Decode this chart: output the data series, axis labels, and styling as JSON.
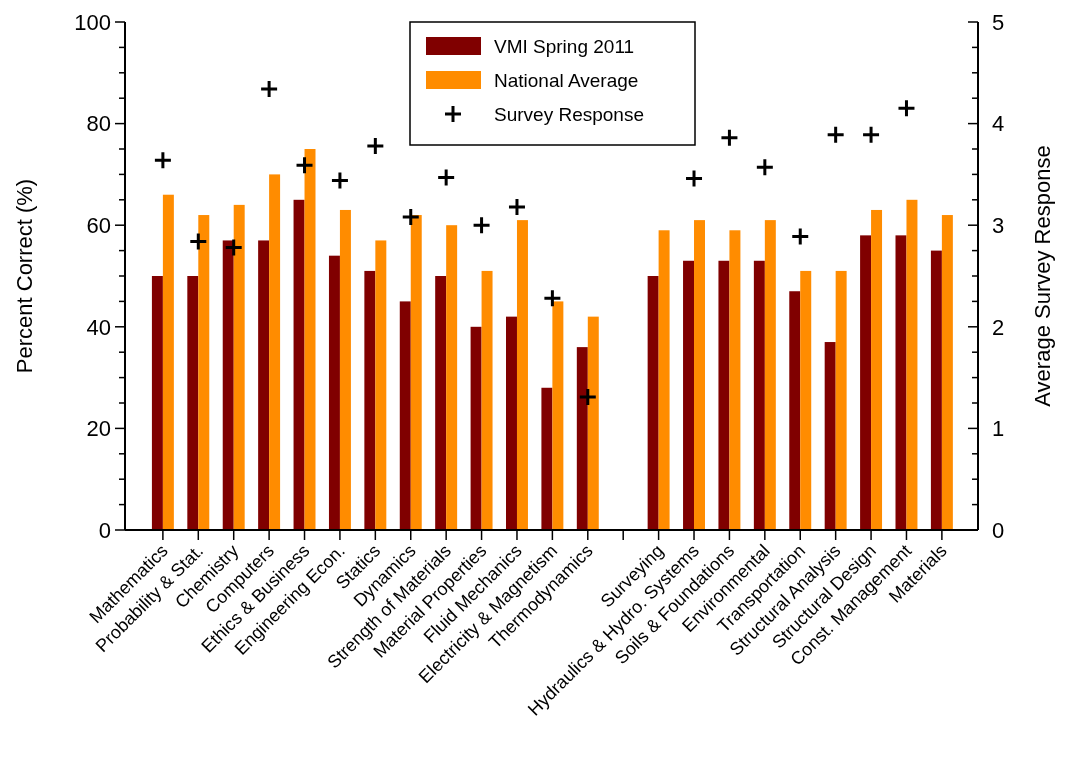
{
  "chart_data": {
    "type": "bar",
    "ylabel": "Percent Correct (%)",
    "y2label": "Average Survey Response",
    "categories": [
      "Mathematics",
      "Probability & Stat.",
      "Chemistry",
      "Computers",
      "Ethics & Business",
      "Engineering Econ.",
      "Statics",
      "Dynamics",
      "Strength of Materials",
      "Material Properties",
      "Fluid Mechanics",
      "Electricity & Magnetism",
      "Thermodynamics",
      null,
      "Surveying",
      "Hydraulics & Hydro. Systems",
      "Soils & Foundations",
      "Environmental",
      "Transportation",
      "Structural Analysis",
      "Structural Design",
      "Const. Management",
      "Materials"
    ],
    "series": [
      {
        "name": "VMI Spring 2011",
        "color": "#800000",
        "values": [
          50,
          50,
          57,
          57,
          65,
          54,
          51,
          45,
          50,
          40,
          42,
          28,
          36,
          null,
          50,
          53,
          53,
          53,
          47,
          37,
          58,
          58,
          55
        ]
      },
      {
        "name": "National Average",
        "color": "#ff8c00",
        "values": [
          66,
          62,
          64,
          70,
          75,
          63,
          57,
          62,
          60,
          51,
          61,
          45,
          42,
          null,
          59,
          61,
          59,
          61,
          51,
          51,
          63,
          65,
          62
        ]
      },
      {
        "name": "Survey Response",
        "type": "scatter",
        "axis": "y2",
        "marker": "cross",
        "color": "#000000",
        "values": [
          3.64,
          2.84,
          2.78,
          4.34,
          3.59,
          3.44,
          3.78,
          3.08,
          3.47,
          3.0,
          3.18,
          2.28,
          1.31,
          null,
          null,
          3.46,
          3.86,
          3.57,
          2.89,
          3.89,
          3.89,
          4.15,
          null
        ]
      }
    ],
    "ylim": [
      0,
      100
    ],
    "yticks": [
      0,
      {
        "value": 5,
        "label": null
      },
      {
        "value": 10,
        "label": null
      },
      {
        "value": 15,
        "label": null
      },
      20,
      {
        "value": 25,
        "label": null
      },
      {
        "value": 30,
        "label": null
      },
      {
        "value": 35,
        "label": null
      },
      40,
      {
        "value": 45,
        "label": null
      },
      {
        "value": 50,
        "label": null
      },
      {
        "value": 55,
        "label": null
      },
      60,
      {
        "value": 65,
        "label": null
      },
      {
        "value": 70,
        "label": null
      },
      {
        "value": 75,
        "label": null
      },
      80,
      {
        "value": 85,
        "label": null
      },
      {
        "value": 90,
        "label": null
      },
      {
        "value": 95,
        "label": null
      },
      100
    ],
    "y2lim": [
      0,
      5
    ],
    "y2ticks": [
      0,
      {
        "value": 0.25,
        "label": null
      },
      {
        "value": 0.5,
        "label": null
      },
      {
        "value": 0.75,
        "label": null
      },
      1,
      {
        "value": 1.25,
        "label": null
      },
      {
        "value": 1.5,
        "label": null
      },
      {
        "value": 1.75,
        "label": null
      },
      2,
      {
        "value": 2.25,
        "label": null
      },
      {
        "value": 2.5,
        "label": null
      },
      {
        "value": 2.75,
        "label": null
      },
      3,
      {
        "value": 3.25,
        "label": null
      },
      {
        "value": 3.5,
        "label": null
      },
      {
        "value": 3.75,
        "label": null
      },
      4,
      {
        "value": 4.25,
        "label": null
      },
      {
        "value": 4.5,
        "label": null
      },
      {
        "value": 4.75,
        "label": null
      },
      5
    ],
    "legend": "top",
    "grid": false
  }
}
